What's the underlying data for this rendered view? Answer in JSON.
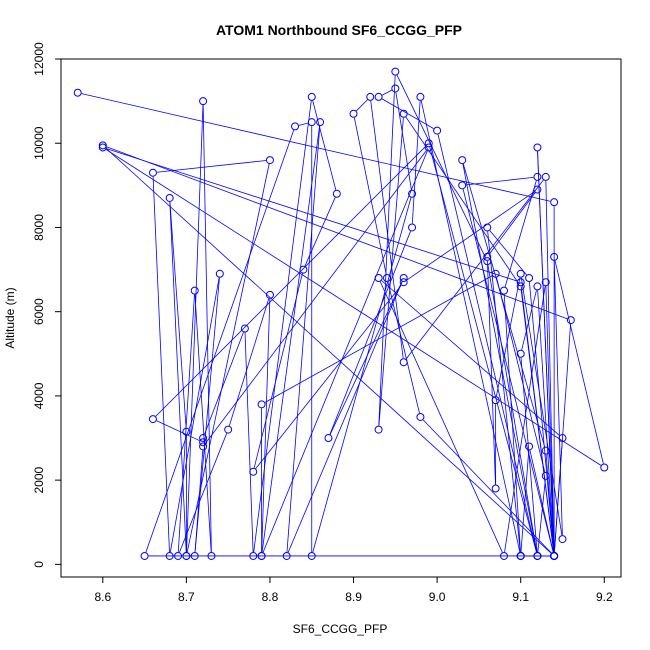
{
  "chart_data": {
    "type": "line",
    "title": "ATOM1 Northbound SF6_CCGG_PFP",
    "xlabel": "SF6_CCGG_PFP",
    "ylabel": "Altitude (m)",
    "xlim": [
      8.55,
      9.22
    ],
    "ylim": [
      -300,
      12000
    ],
    "x_ticks": [
      "8.6",
      "8.7",
      "8.8",
      "8.9",
      "9.0",
      "9.1",
      "9.2"
    ],
    "y_ticks": [
      "0",
      "2000",
      "4000",
      "6000",
      "8000",
      "10000",
      "12000"
    ],
    "series_color": "#0000ff",
    "grid": false,
    "markers": "open-circle",
    "points": [
      [
        8.57,
        11200
      ],
      [
        9.14,
        8600
      ],
      [
        9.14,
        200
      ],
      [
        9.12,
        9900
      ],
      [
        9.14,
        200
      ],
      [
        8.6,
        9950
      ],
      [
        9.16,
        5800
      ],
      [
        9.14,
        200
      ],
      [
        9.13,
        9200
      ],
      [
        8.96,
        4800
      ],
      [
        8.92,
        11100
      ],
      [
        8.9,
        10700
      ],
      [
        8.94,
        6800
      ],
      [
        8.98,
        3500
      ],
      [
        9.14,
        200
      ],
      [
        9.12,
        6600
      ],
      [
        9.1,
        5000
      ],
      [
        9.12,
        200
      ],
      [
        9.13,
        2100
      ],
      [
        9.07,
        6900
      ],
      [
        8.79,
        3800
      ],
      [
        8.79,
        200
      ],
      [
        8.99,
        9900
      ],
      [
        8.72,
        2800
      ],
      [
        8.71,
        200
      ],
      [
        8.74,
        6900
      ],
      [
        8.68,
        200
      ],
      [
        8.66,
        9300
      ],
      [
        8.8,
        9600
      ],
      [
        8.7,
        200
      ],
      [
        8.68,
        8700
      ],
      [
        8.7,
        3150
      ],
      [
        8.7,
        200
      ],
      [
        8.72,
        11000
      ],
      [
        8.73,
        200
      ],
      [
        8.71,
        6500
      ],
      [
        8.69,
        200
      ],
      [
        8.75,
        3200
      ],
      [
        8.8,
        6400
      ],
      [
        8.79,
        200
      ],
      [
        8.86,
        10500
      ],
      [
        8.82,
        200
      ],
      [
        8.96,
        6800
      ],
      [
        8.87,
        3000
      ],
      [
        8.97,
        8000
      ],
      [
        8.98,
        11100
      ],
      [
        9.1,
        200
      ],
      [
        9.06,
        8000
      ],
      [
        9.11,
        6800
      ],
      [
        9.14,
        200
      ],
      [
        8.65,
        200
      ],
      [
        8.83,
        10400
      ],
      [
        8.85,
        10500
      ],
      [
        8.85,
        200
      ],
      [
        8.97,
        8800
      ],
      [
        8.95,
        11300
      ],
      [
        8.93,
        11100
      ],
      [
        9.0,
        10300
      ],
      [
        9.12,
        200
      ],
      [
        8.99,
        10000
      ],
      [
        8.66,
        3450
      ],
      [
        8.72,
        2900
      ],
      [
        8.72,
        3000
      ],
      [
        8.77,
        5600
      ],
      [
        8.78,
        200
      ],
      [
        8.85,
        11100
      ],
      [
        8.88,
        8800
      ],
      [
        8.84,
        7000
      ],
      [
        8.78,
        2200
      ],
      [
        8.96,
        6700
      ],
      [
        9.12,
        8900
      ],
      [
        9.06,
        7300
      ],
      [
        9.07,
        1800
      ],
      [
        9.07,
        3900
      ],
      [
        9.1,
        6900
      ],
      [
        9.15,
        600
      ],
      [
        9.14,
        7300
      ],
      [
        9.2,
        2300
      ],
      [
        8.6,
        9900
      ],
      [
        9.1,
        6700
      ],
      [
        9.14,
        200
      ],
      [
        9.13,
        6700
      ],
      [
        9.08,
        200
      ],
      [
        8.93,
        6800
      ],
      [
        9.15,
        3000
      ],
      [
        9.14,
        200
      ],
      [
        9.11,
        2800
      ],
      [
        9.1,
        200
      ],
      [
        9.1,
        200
      ],
      [
        9.14,
        200
      ],
      [
        9.13,
        2700
      ],
      [
        9.03,
        9600
      ],
      [
        9.12,
        200
      ],
      [
        9.06,
        7200
      ],
      [
        8.95,
        11700
      ],
      [
        8.93,
        3200
      ],
      [
        8.96,
        10700
      ],
      [
        9.1,
        6600
      ],
      [
        9.14,
        200
      ],
      [
        9.03,
        9000
      ],
      [
        9.12,
        9200
      ],
      [
        9.08,
        6500
      ],
      [
        9.1,
        200
      ]
    ]
  }
}
